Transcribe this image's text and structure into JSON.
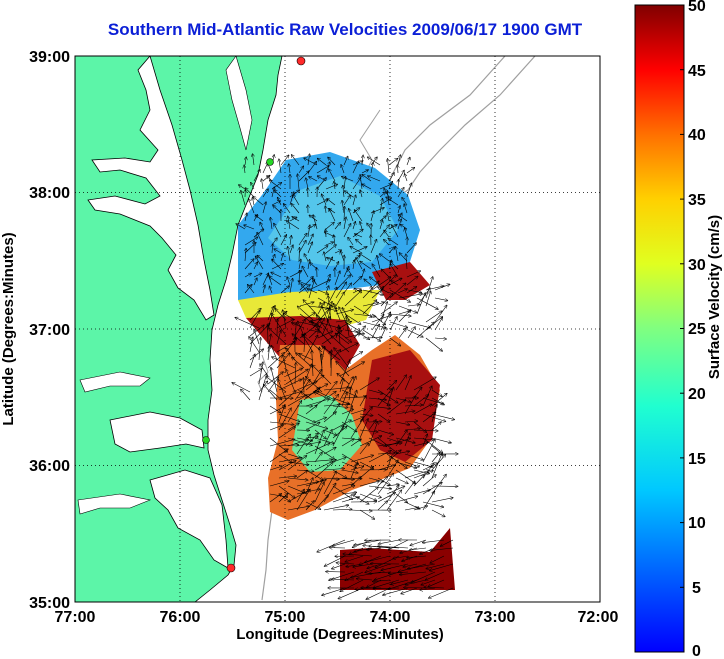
{
  "title": "Southern Mid-Atlantic Raw Velocities 2009/06/17 1900 GMT",
  "x_axis": {
    "label": "Longitude (Degrees:Minutes)",
    "ticks": [
      "77:00",
      "76:00",
      "75:00",
      "74:00",
      "73:00",
      "72:00"
    ],
    "range_deg_west": [
      77,
      72
    ]
  },
  "y_axis": {
    "label": "Latitude (Degrees:Minutes)",
    "ticks": [
      "39:00",
      "38:00",
      "37:00",
      "36:00",
      "35:00"
    ],
    "range_deg_north": [
      35,
      39
    ]
  },
  "colorbar": {
    "label": "Surface Velocity (cm/s)",
    "ticks": [
      "50",
      "45",
      "40",
      "35",
      "30",
      "25",
      "20",
      "15",
      "10",
      "5",
      "0"
    ],
    "range": [
      0,
      50
    ],
    "colormap": "jet"
  },
  "colors": {
    "land": "#5cf5a8",
    "title": "#0b1fd6",
    "coast_outline": "#000000",
    "bathymetry": "#a0a0a0"
  },
  "grid": "dotted",
  "stations": [
    {
      "color": "#ff2a2a"
    },
    {
      "color": "#26d626"
    },
    {
      "color": "#26d626"
    },
    {
      "color": "#ff2a2a"
    }
  ]
}
